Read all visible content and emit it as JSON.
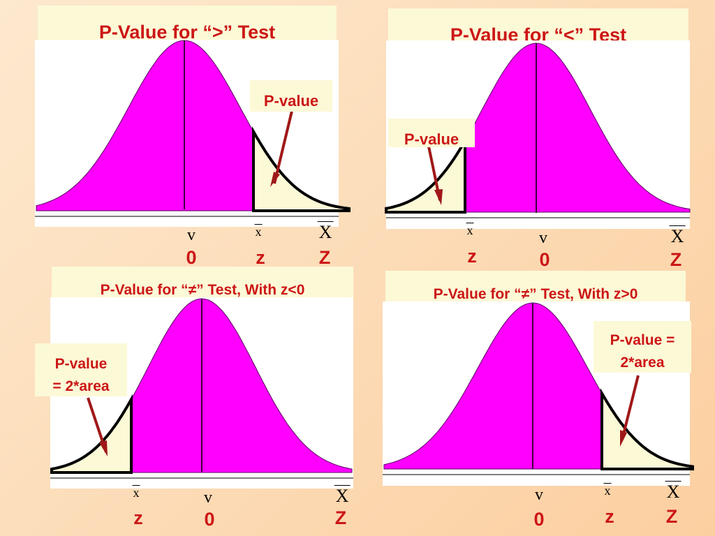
{
  "panels": [
    {
      "title": "P-Value for “>” Test",
      "callout": "P-value",
      "labels": {
        "v": "v",
        "xbar": "x",
        "Xbar": "X",
        "zero": "0",
        "z": "z",
        "Z": "Z"
      }
    },
    {
      "title": "P-Value for “<” Test",
      "callout": "P-value",
      "labels": {
        "v": "v",
        "xbar": "x",
        "Xbar": "X",
        "zero": "0",
        "z": "z",
        "Z": "Z"
      }
    },
    {
      "title": "P-Value for “≠” Test, With z<0",
      "callout_line1": "P-value",
      "callout_line2": "= 2*area",
      "labels": {
        "v": "v",
        "xbar": "x",
        "Xbar": "X",
        "zero": "0",
        "z": "z",
        "Z": "Z"
      }
    },
    {
      "title": "P-Value for “≠” Test, With z>0",
      "callout_line1": "P-value =",
      "callout_line2": "2*area",
      "labels": {
        "v": "v",
        "xbar": "x",
        "Xbar": "X",
        "zero": "0",
        "z": "z",
        "Z": "Z"
      }
    }
  ],
  "colors": {
    "curve_fill": "#ff00ff",
    "tail_fill": "#fcf9d7",
    "label_red": "#cc1616",
    "arrow": "#a01818"
  }
}
